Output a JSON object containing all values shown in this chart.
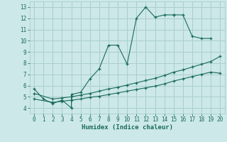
{
  "xlabel": "Humidex (Indice chaleur)",
  "bg_color": "#cce8e8",
  "grid_color": "#aacece",
  "line_color": "#1a6b5a",
  "xlim": [
    -0.5,
    20.5
  ],
  "ylim": [
    3.5,
    13.5
  ],
  "xticks": [
    0,
    1,
    2,
    3,
    4,
    5,
    6,
    7,
    8,
    9,
    10,
    11,
    12,
    13,
    14,
    15,
    16,
    17,
    18,
    19,
    20
  ],
  "yticks": [
    4,
    5,
    6,
    7,
    8,
    9,
    10,
    11,
    12,
    13
  ],
  "s1_x": [
    0,
    1,
    2,
    3,
    4,
    4,
    5,
    6,
    7,
    8,
    9,
    10,
    11,
    12,
    13,
    14,
    15,
    15,
    16,
    17,
    18,
    19
  ],
  "s1_y": [
    5.7,
    4.8,
    4.4,
    4.7,
    4.0,
    5.2,
    5.4,
    6.6,
    7.5,
    9.6,
    9.6,
    7.9,
    12.0,
    13.0,
    12.1,
    12.3,
    12.3,
    12.3,
    12.3,
    10.4,
    10.2,
    10.2
  ],
  "s2_x": [
    0,
    2,
    3,
    4,
    5,
    6,
    7,
    8,
    9,
    10,
    11,
    12,
    13,
    14,
    15,
    16,
    17,
    18,
    19,
    20
  ],
  "s2_y": [
    5.3,
    4.8,
    4.9,
    5.0,
    5.15,
    5.3,
    5.5,
    5.7,
    5.85,
    6.05,
    6.25,
    6.45,
    6.65,
    6.9,
    7.2,
    7.4,
    7.65,
    7.9,
    8.15,
    8.6
  ],
  "s3_x": [
    0,
    2,
    3,
    4,
    5,
    6,
    7,
    8,
    9,
    10,
    11,
    12,
    13,
    14,
    15,
    16,
    17,
    18,
    19,
    20
  ],
  "s3_y": [
    4.8,
    4.5,
    4.6,
    4.7,
    4.8,
    4.95,
    5.05,
    5.2,
    5.35,
    5.5,
    5.65,
    5.8,
    5.95,
    6.15,
    6.4,
    6.6,
    6.8,
    7.0,
    7.2,
    7.1
  ]
}
